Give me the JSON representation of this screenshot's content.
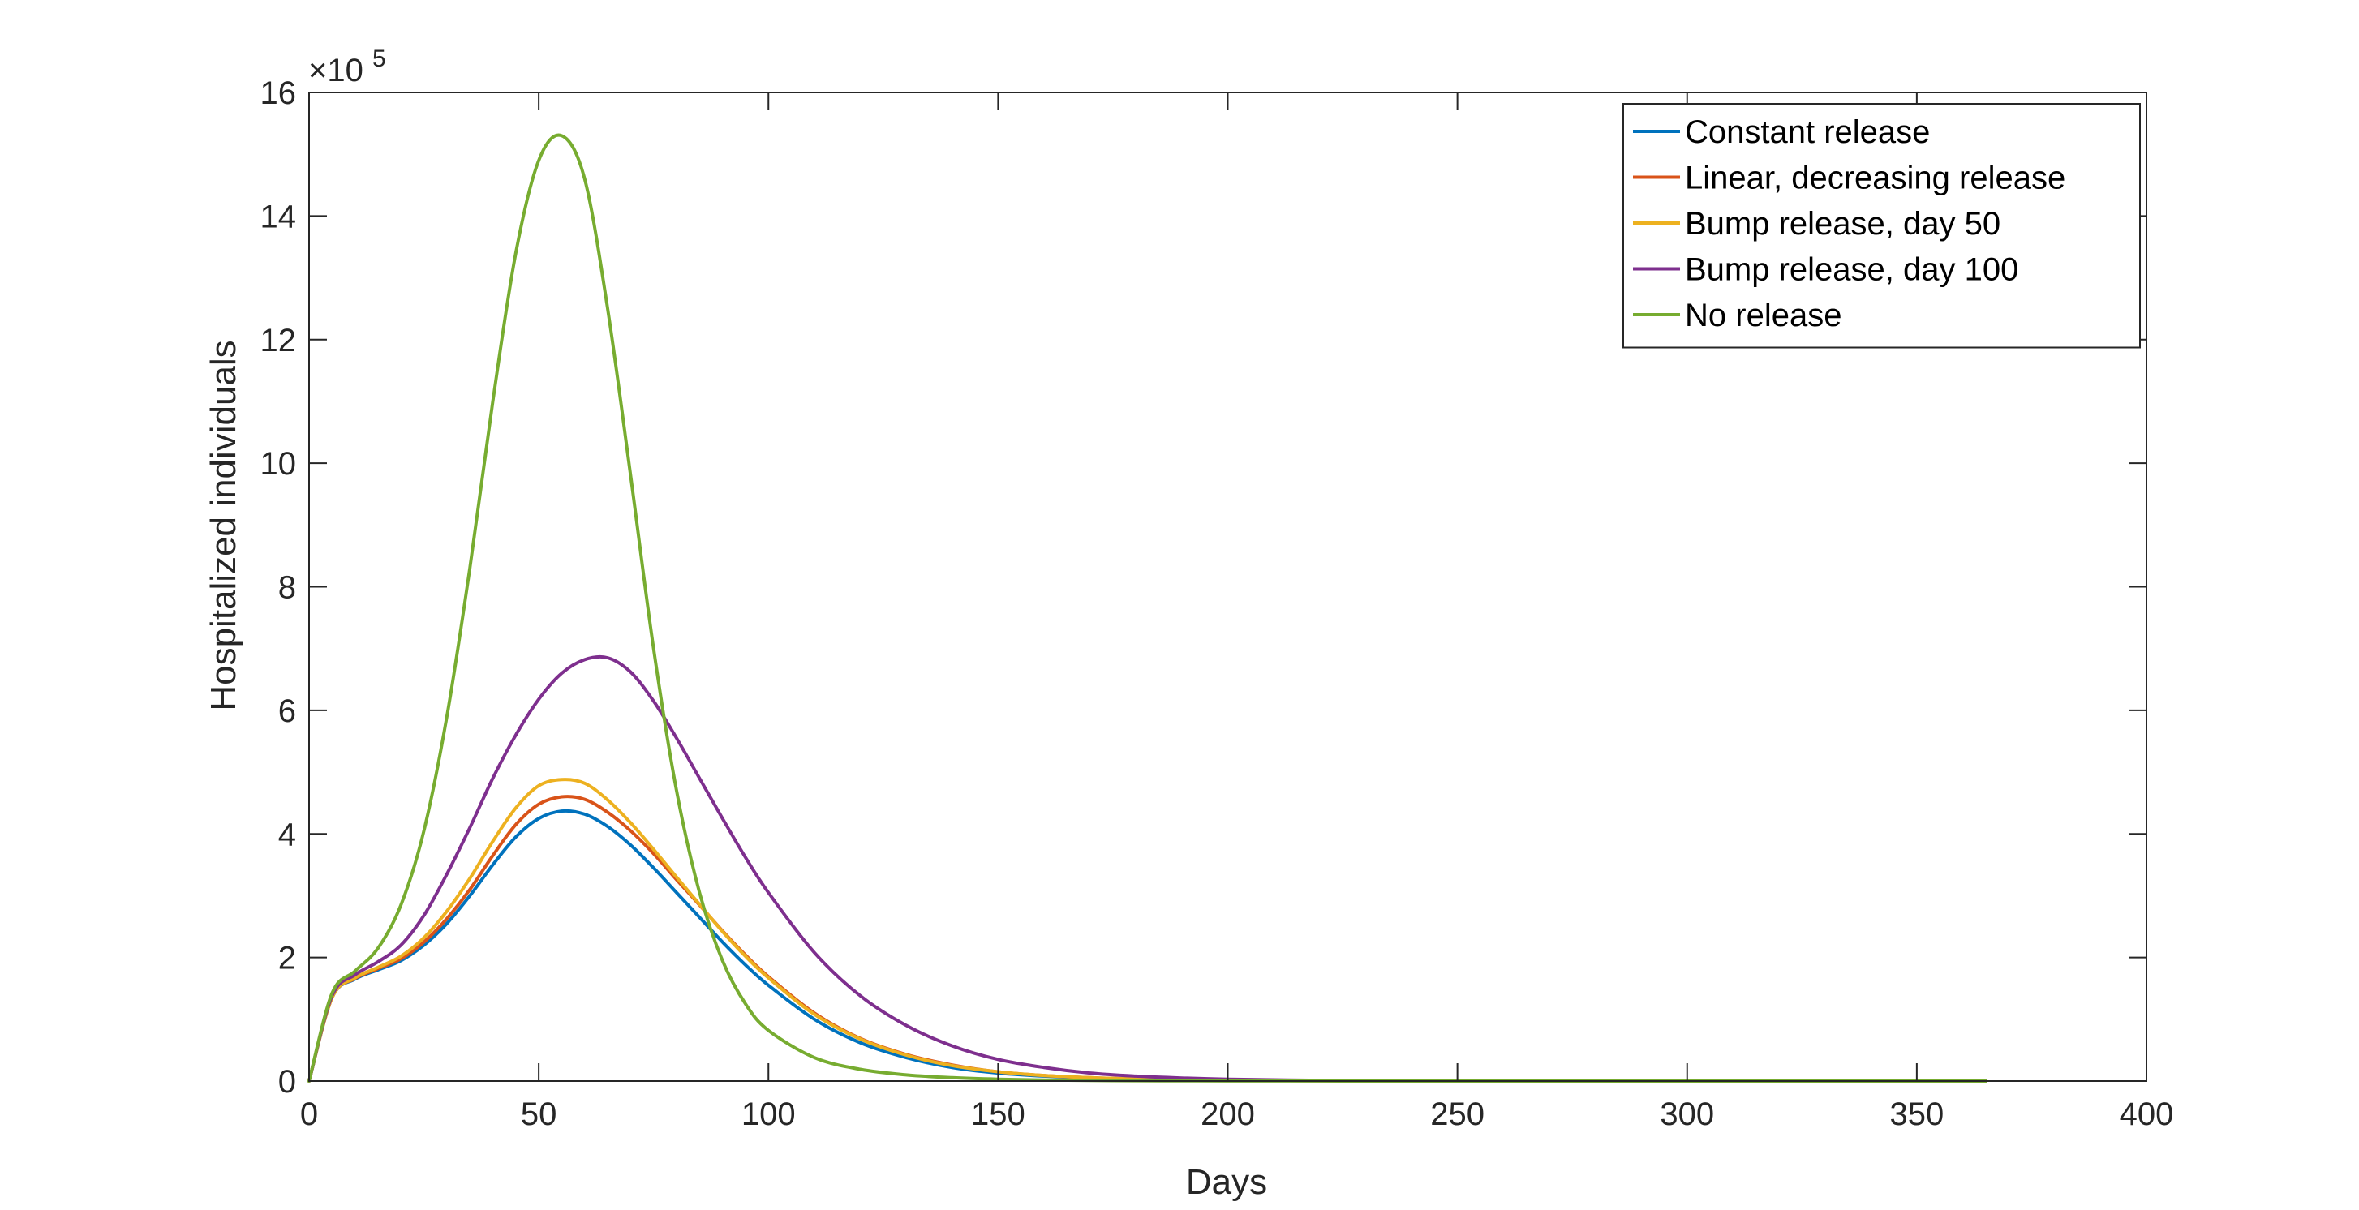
{
  "chart_data": {
    "type": "line",
    "title": "",
    "xlabel": "Days",
    "ylabel": "Hospitalized individuals",
    "y_multiplier_label": "×10",
    "y_multiplier_exponent": "5",
    "xlim": [
      0,
      400
    ],
    "ylim": [
      0,
      16
    ],
    "x_ticks": [
      0,
      50,
      100,
      150,
      200,
      250,
      300,
      350,
      400
    ],
    "y_ticks": [
      0,
      2,
      4,
      6,
      8,
      10,
      12,
      14,
      16
    ],
    "grid": false,
    "legend_position": "top-right",
    "x": [
      0,
      5,
      10,
      15,
      20,
      25,
      30,
      35,
      40,
      45,
      50,
      55,
      60,
      65,
      70,
      75,
      80,
      85,
      90,
      95,
      100,
      110,
      120,
      130,
      140,
      150,
      160,
      170,
      180,
      190,
      200,
      220,
      240,
      260,
      280,
      300,
      320,
      340,
      365
    ],
    "series": [
      {
        "name": "Constant release",
        "color": "#0072BD",
        "values": [
          0,
          1.35,
          1.65,
          1.8,
          1.95,
          2.2,
          2.55,
          3.0,
          3.5,
          3.95,
          4.25,
          4.37,
          4.32,
          4.12,
          3.82,
          3.45,
          3.05,
          2.65,
          2.25,
          1.88,
          1.55,
          1.0,
          0.62,
          0.38,
          0.22,
          0.13,
          0.08,
          0.05,
          0.03,
          0.02,
          0.01,
          0.005,
          0.002,
          0.001,
          0,
          0,
          0,
          0,
          0
        ]
      },
      {
        "name": "Linear, decreasing release",
        "color": "#D95319",
        "values": [
          0,
          1.35,
          1.66,
          1.82,
          1.98,
          2.25,
          2.63,
          3.1,
          3.65,
          4.15,
          4.48,
          4.6,
          4.56,
          4.35,
          4.05,
          3.68,
          3.26,
          2.85,
          2.43,
          2.04,
          1.69,
          1.1,
          0.69,
          0.43,
          0.26,
          0.15,
          0.09,
          0.055,
          0.033,
          0.02,
          0.012,
          0.005,
          0.002,
          0.001,
          0,
          0,
          0,
          0,
          0
        ]
      },
      {
        "name": "Bump release, day 50",
        "color": "#EDB120",
        "values": [
          0,
          1.35,
          1.67,
          1.84,
          2.02,
          2.32,
          2.75,
          3.28,
          3.88,
          4.42,
          4.78,
          4.88,
          4.82,
          4.55,
          4.18,
          3.75,
          3.3,
          2.86,
          2.42,
          2.02,
          1.67,
          1.08,
          0.68,
          0.42,
          0.25,
          0.15,
          0.09,
          0.055,
          0.033,
          0.02,
          0.012,
          0.005,
          0.002,
          0.001,
          0,
          0,
          0,
          0,
          0
        ]
      },
      {
        "name": "Bump release, day 100",
        "color": "#7E2F8E",
        "values": [
          0,
          1.38,
          1.72,
          1.93,
          2.2,
          2.68,
          3.35,
          4.1,
          4.9,
          5.6,
          6.18,
          6.6,
          6.82,
          6.85,
          6.62,
          6.15,
          5.55,
          4.9,
          4.25,
          3.62,
          3.05,
          2.08,
          1.38,
          0.9,
          0.57,
          0.35,
          0.22,
          0.13,
          0.08,
          0.05,
          0.03,
          0.012,
          0.005,
          0.002,
          0.001,
          0,
          0,
          0,
          0
        ]
      },
      {
        "name": "No release",
        "color": "#77AC30",
        "values": [
          0,
          1.42,
          1.78,
          2.15,
          2.85,
          4.05,
          5.9,
          8.3,
          11.0,
          13.4,
          14.9,
          15.3,
          14.6,
          12.5,
          9.8,
          7.0,
          4.7,
          3.05,
          1.95,
          1.25,
          0.82,
          0.38,
          0.19,
          0.1,
          0.055,
          0.03,
          0.017,
          0.01,
          0.005,
          0.003,
          0.002,
          0.001,
          0,
          0,
          0,
          0,
          0,
          0,
          0
        ]
      }
    ]
  }
}
